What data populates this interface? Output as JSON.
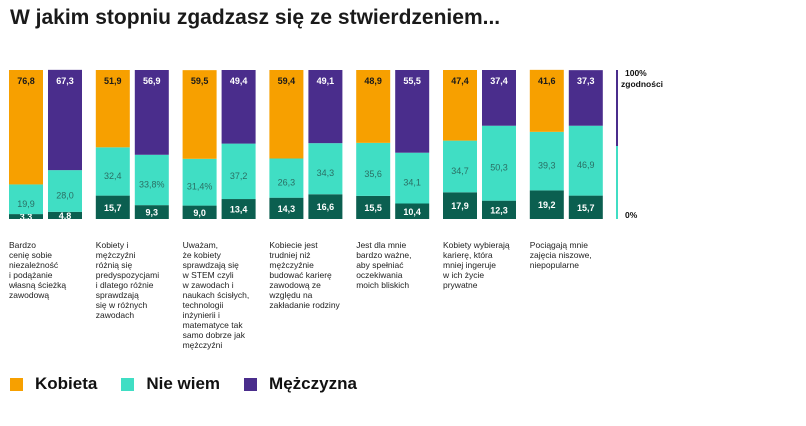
{
  "title": "W jakim stopniu zgadzasz się ze stwierdzeniem...",
  "colors": {
    "kobieta": "#F7A000",
    "nie_wiem": "#40DEC4",
    "mezczyzna": "#4A2D8C",
    "dark": "#0B5F50"
  },
  "legend": [
    {
      "key": "kobieta",
      "label": "Kobieta"
    },
    {
      "key": "nie_wiem",
      "label": "Nie wiem"
    },
    {
      "key": "mezczyzna",
      "label": "Mężczyzna"
    }
  ],
  "axis": {
    "top_label": "100%",
    "top_sublabel": "zgodności",
    "bottom_label": "0%"
  },
  "chart_data": {
    "type": "bar",
    "stacked": true,
    "ylim": [
      0,
      100
    ],
    "categories": [
      "Bardzo cenię sobie niezależność i podążanie własną ścieżką zawodową",
      "Kobiety i mężczyźni różnią się predyspozycjami i dlatego różnie sprawdzają się w różnych zawodach",
      "Uważam, że kobiety sprawdzają się w STEM czyli w zawodach i naukach ścisłych, technologii inżynierii i matematyce tak samo dobrze jak mężczyźni",
      "Kobiecie jest trudniej niż mężczyźnie budować karierę zawodową ze względu na zakładanie rodziny",
      "Jest dla mnie bardzo ważne, aby spełniać oczekiwania moich bliskich",
      "Kobiety wybierają karierę, która mniej ingeruje w ich życie prywatne",
      "Pociągają mnie zajęcia niszowe, niepopularne"
    ],
    "category_lines": [
      [
        "Bardzo",
        "cenię sobie",
        "niezależność",
        "i podążanie",
        "własną ścieżką",
        "zawodową"
      ],
      [
        "Kobiety i",
        "mężczyźni",
        "różnią się",
        "predyspozycjami",
        "i dlatego różnie",
        "sprawdzają",
        "się w różnych",
        "zawodach"
      ],
      [
        "Uważam,",
        "że kobiety",
        "sprawdzają się",
        "w STEM czyli",
        "w zawodach i",
        "naukach ścisłych,",
        "technologii",
        "inżynierii i",
        "matematyce tak",
        "samo dobrze jak",
        "mężczyźni"
      ],
      [
        "Kobiecie jest",
        "trudniej niż",
        "mężczyźnie",
        "budować karierę",
        "zawodową ze",
        "względu na",
        "zakładanie rodziny"
      ],
      [
        "Jest dla mnie",
        "bardzo ważne,",
        "aby spełniać",
        "oczekiwania",
        "moich bliskich"
      ],
      [
        "Kobiety wybierają",
        "karierę, która",
        "mniej ingeruje",
        "w ich życie",
        "prywatne"
      ],
      [
        "Pociągają mnie",
        "zajęcia niszowe,",
        "niepopularne"
      ]
    ],
    "groups": [
      {
        "kobieta": {
          "agree": 76.8,
          "nie_wiem": 19.9,
          "disagree": 3.3,
          "labels": [
            "76,8",
            "19,9",
            "3,3"
          ]
        },
        "mezczyzna": {
          "agree": 67.3,
          "nie_wiem": 28.0,
          "disagree": 4.8,
          "labels": [
            "67,3",
            "28,0",
            "4,8"
          ]
        }
      },
      {
        "kobieta": {
          "agree": 51.9,
          "nie_wiem": 32.4,
          "disagree": 15.7,
          "labels": [
            "51,9",
            "32,4",
            "15,7"
          ]
        },
        "mezczyzna": {
          "agree": 56.9,
          "nie_wiem": 33.8,
          "disagree": 9.3,
          "labels": [
            "56,9",
            "33,8%",
            "9,3"
          ]
        }
      },
      {
        "kobieta": {
          "agree": 59.5,
          "nie_wiem": 31.4,
          "disagree": 9.0,
          "labels": [
            "59,5",
            "31,4%",
            "9,0"
          ]
        },
        "mezczyzna": {
          "agree": 49.4,
          "nie_wiem": 37.2,
          "disagree": 13.4,
          "labels": [
            "49,4",
            "37,2",
            "13,4"
          ]
        }
      },
      {
        "kobieta": {
          "agree": 59.4,
          "nie_wiem": 26.3,
          "disagree": 14.3,
          "labels": [
            "59,4",
            "26,3",
            "14,3"
          ]
        },
        "mezczyzna": {
          "agree": 49.1,
          "nie_wiem": 34.3,
          "disagree": 16.6,
          "labels": [
            "49,1",
            "34,3",
            "16,6"
          ]
        }
      },
      {
        "kobieta": {
          "agree": 48.9,
          "nie_wiem": 35.6,
          "disagree": 15.5,
          "labels": [
            "48,9",
            "35,6",
            "15,5"
          ]
        },
        "mezczyzna": {
          "agree": 55.5,
          "nie_wiem": 34.1,
          "disagree": 10.4,
          "labels": [
            "55,5",
            "34,1",
            "10,4"
          ]
        }
      },
      {
        "kobieta": {
          "agree": 47.4,
          "nie_wiem": 34.7,
          "disagree": 17.9,
          "labels": [
            "47,4",
            "34,7",
            "17,9"
          ]
        },
        "mezczyzna": {
          "agree": 37.4,
          "nie_wiem": 50.3,
          "disagree": 12.3,
          "labels": [
            "37,4",
            "50,3",
            "12,3"
          ]
        }
      },
      {
        "kobieta": {
          "agree": 41.6,
          "nie_wiem": 39.3,
          "disagree": 19.2,
          "labels": [
            "41,6",
            "39,3",
            "19,2"
          ]
        },
        "mezczyzna": {
          "agree": 37.3,
          "nie_wiem": 46.9,
          "disagree": 15.7,
          "labels": [
            "37,3",
            "46,9",
            "15,7"
          ]
        }
      }
    ]
  }
}
